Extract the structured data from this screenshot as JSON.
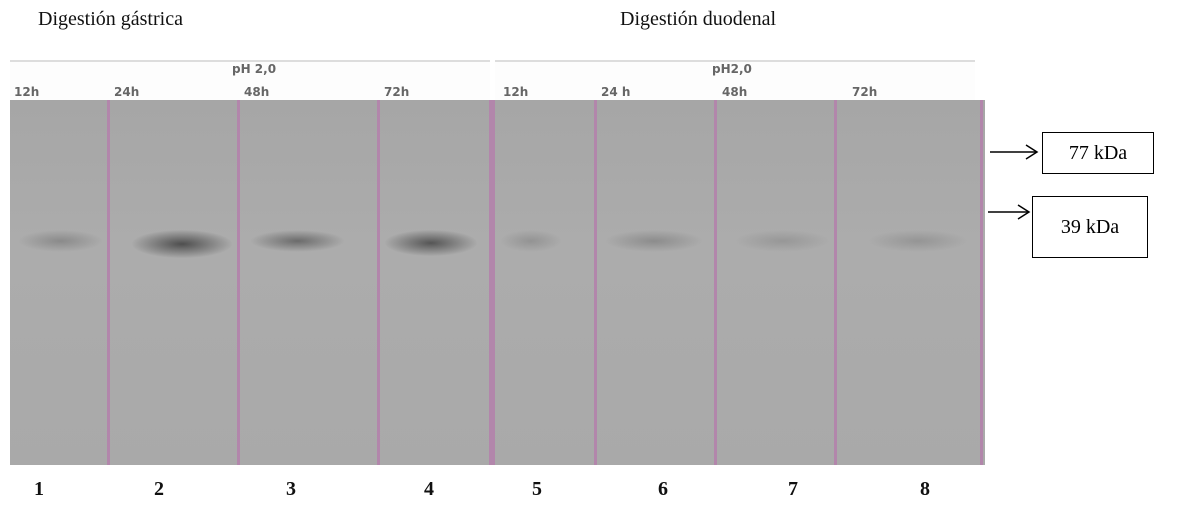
{
  "header": {
    "gastric_title": "Digestión gástrica",
    "duodenal_title": "Digestión duodenal"
  },
  "groups": [
    {
      "ph": "pH 2,0",
      "lanes": [
        {
          "time": "12h",
          "number": "1"
        },
        {
          "time": "24h",
          "number": "2"
        },
        {
          "time": "48h",
          "number": "3"
        },
        {
          "time": "72h",
          "number": "4"
        }
      ]
    },
    {
      "ph": "pH2,0",
      "lanes": [
        {
          "time": "12h",
          "number": "5"
        },
        {
          "time": "24 h",
          "number": "6"
        },
        {
          "time": "48h",
          "number": "7"
        },
        {
          "time": "72h",
          "number": "8"
        }
      ]
    }
  ],
  "markers": [
    "77 kDa",
    "39 kDa"
  ]
}
